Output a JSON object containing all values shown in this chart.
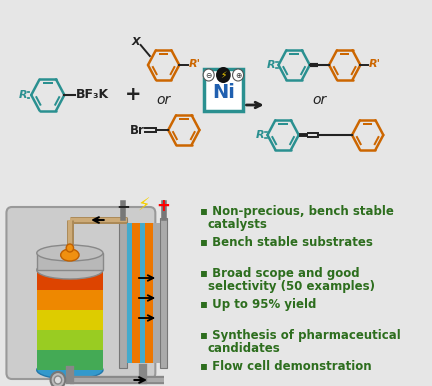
{
  "background_color": "#e6e6e6",
  "bullet_color": "#2d6e1e",
  "bullet_points": [
    "Non-precious, bench stable\n   catalysts",
    "Bench stable substrates",
    "Broad scope and good\n   selectivity (50 examples)",
    "Up to 95% yield",
    "Synthesis of pharmaceutical\n   candidates",
    "Flow cell demonstration"
  ],
  "bullet_fontsize": 8.5,
  "teal_color": "#2a9090",
  "orange_color": "#cc6600",
  "dark_color": "#222222",
  "ni_blue": "#2060b0",
  "arrow_color": "#222222"
}
